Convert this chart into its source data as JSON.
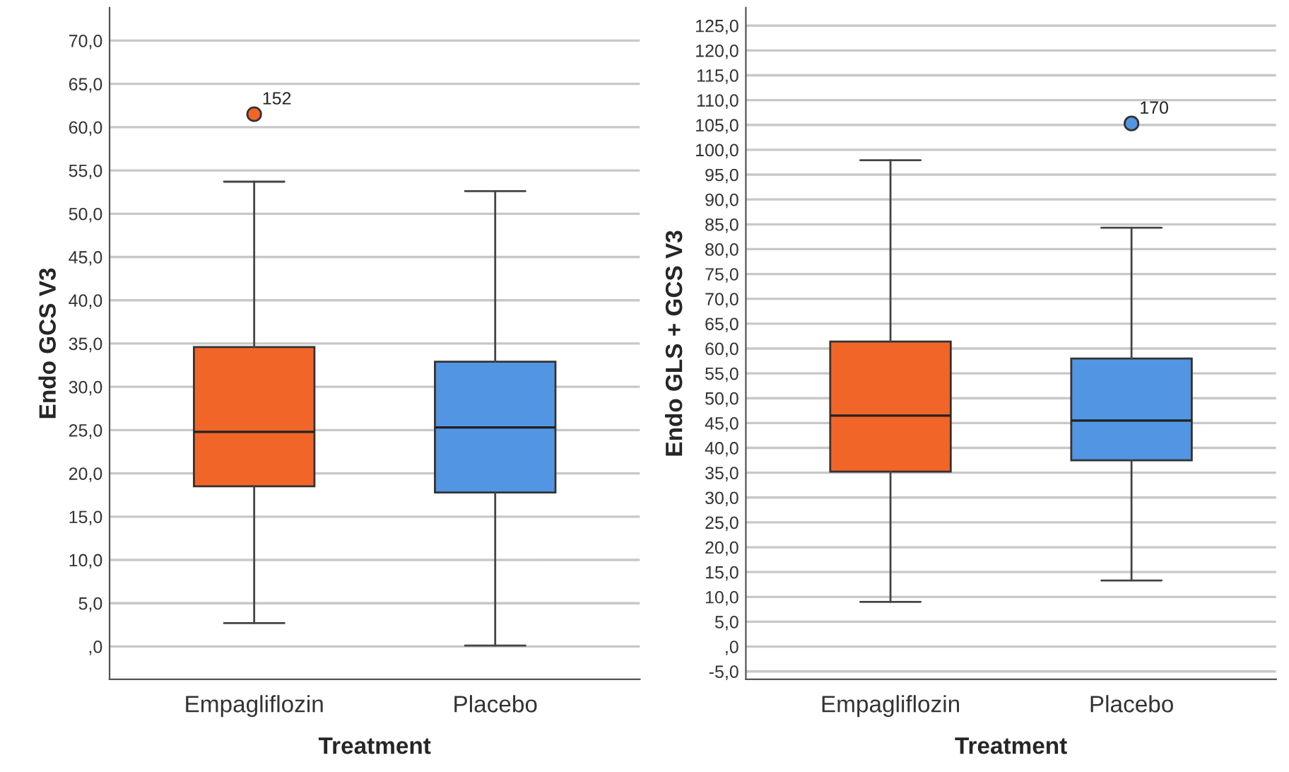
{
  "chart_data": [
    {
      "type": "box",
      "xlabel": "Treatment",
      "ylabel": "Endo GCS V3",
      "categories": [
        "Empagliflozin",
        "Placebo"
      ],
      "colors": [
        "#f26529",
        "#5295e3"
      ],
      "boxes": [
        {
          "low": 2.7,
          "q1": 18.5,
          "median": 24.8,
          "q3": 34.6,
          "high": 53.7,
          "outliers": [
            61.5
          ]
        },
        {
          "low": 0.1,
          "q1": 17.8,
          "median": 25.3,
          "q3": 32.9,
          "high": 52.6
        }
      ],
      "annotations": [
        "152"
      ],
      "ylim": [
        -3.8,
        73.8
      ],
      "yticks": [
        {
          "value": 0,
          "label": ",0"
        },
        {
          "value": 5,
          "label": "5,0"
        },
        {
          "value": 10,
          "label": "10,0"
        },
        {
          "value": 15,
          "label": "15,0"
        },
        {
          "value": 20,
          "label": "20,0"
        },
        {
          "value": 25,
          "label": "25,0"
        },
        {
          "value": 30,
          "label": "30,0"
        },
        {
          "value": 35,
          "label": "35,0"
        },
        {
          "value": 40,
          "label": "40,0"
        },
        {
          "value": 45,
          "label": "45,0"
        },
        {
          "value": 50,
          "label": "50,0"
        },
        {
          "value": 55,
          "label": "55,0"
        },
        {
          "value": 60,
          "label": "60,0"
        },
        {
          "value": 65,
          "label": "65,0"
        },
        {
          "value": 70,
          "label": "70,0"
        }
      ],
      "grid": "y"
    },
    {
      "type": "box",
      "xlabel": "Treatment",
      "ylabel": "Endo GLS + GCS V3",
      "categories": [
        "Empagliflozin",
        "Placebo"
      ],
      "colors": [
        "#f26529",
        "#5295e3"
      ],
      "boxes": [
        {
          "low": 9.0,
          "q1": 35.2,
          "median": 46.5,
          "q3": 61.4,
          "high": 97.9
        },
        {
          "low": 13.3,
          "q1": 37.5,
          "median": 45.5,
          "q3": 58.0,
          "high": 84.3,
          "outliers": [
            105.3
          ]
        }
      ],
      "annotations": [
        "170"
      ],
      "ylim": [
        -6.6,
        128.6
      ],
      "yticks": [
        {
          "value": -5,
          "label": "-5,0"
        },
        {
          "value": 0,
          "label": ",0"
        },
        {
          "value": 5,
          "label": "5,0"
        },
        {
          "value": 10,
          "label": "10,0"
        },
        {
          "value": 15,
          "label": "15,0"
        },
        {
          "value": 20,
          "label": "20,0"
        },
        {
          "value": 25,
          "label": "25,0"
        },
        {
          "value": 30,
          "label": "30,0"
        },
        {
          "value": 35,
          "label": "35,0"
        },
        {
          "value": 40,
          "label": "40,0"
        },
        {
          "value": 45,
          "label": "45,0"
        },
        {
          "value": 50,
          "label": "50,0"
        },
        {
          "value": 55,
          "label": "55,0"
        },
        {
          "value": 60,
          "label": "60,0"
        },
        {
          "value": 65,
          "label": "65,0"
        },
        {
          "value": 70,
          "label": "70,0"
        },
        {
          "value": 75,
          "label": "75,0"
        },
        {
          "value": 80,
          "label": "80,0"
        },
        {
          "value": 85,
          "label": "85,0"
        },
        {
          "value": 90,
          "label": "90,0"
        },
        {
          "value": 95,
          "label": "95,0"
        },
        {
          "value": 100,
          "label": "100,0"
        },
        {
          "value": 105,
          "label": "105,0"
        },
        {
          "value": 110,
          "label": "110,0"
        },
        {
          "value": 115,
          "label": "115,0"
        },
        {
          "value": 120,
          "label": "120,0"
        },
        {
          "value": 125,
          "label": "125,0"
        }
      ],
      "grid": "y"
    }
  ]
}
